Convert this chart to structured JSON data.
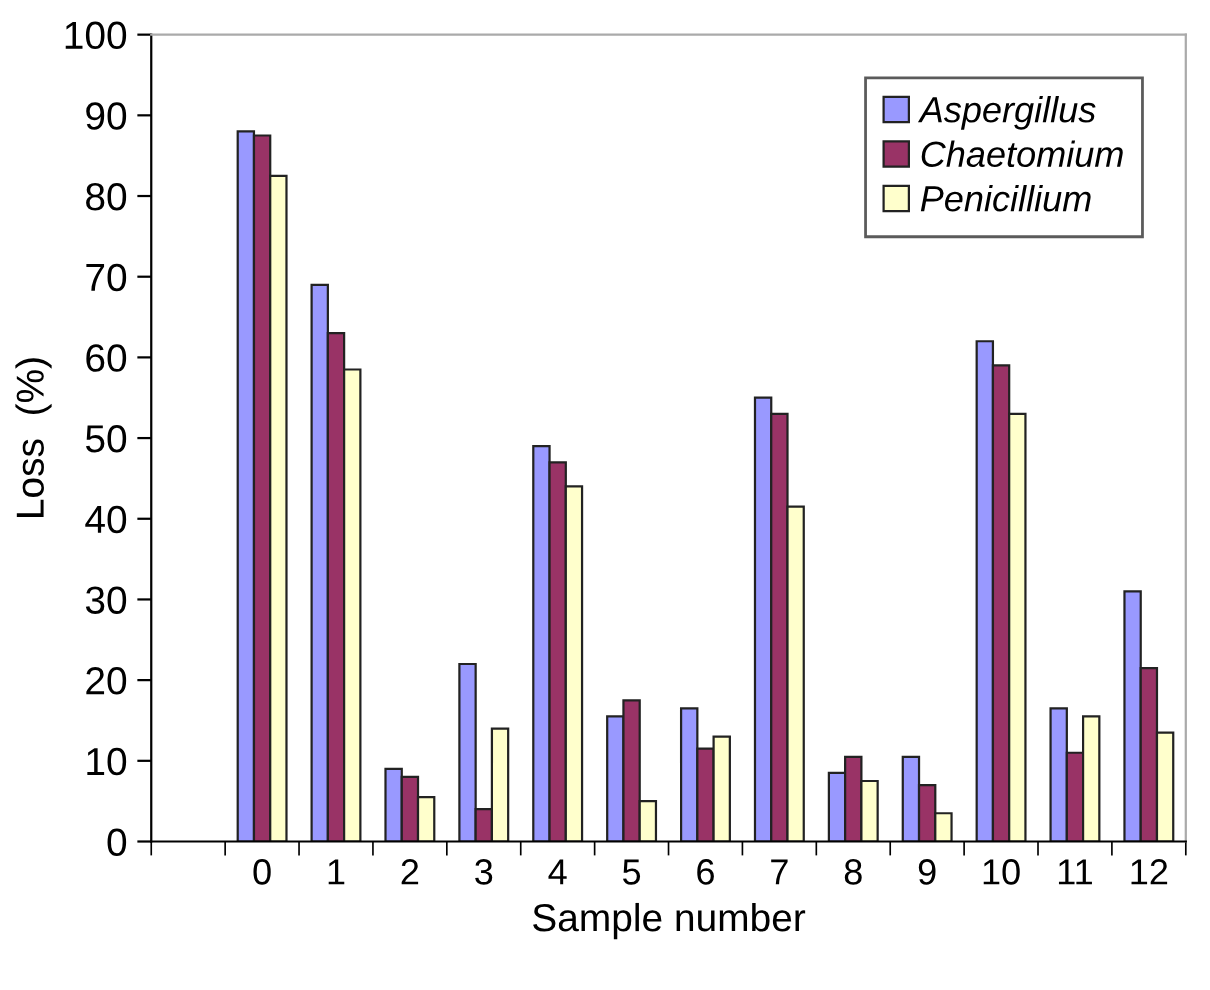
{
  "chart_data": {
    "type": "bar",
    "xlabel": "Sample number",
    "ylabel": "Loss  (%)",
    "categories": [
      null,
      "0",
      "1",
      "2",
      "3",
      "4",
      "5",
      "6",
      "7",
      "8",
      "9",
      "10",
      "11",
      "12"
    ],
    "series": [
      {
        "name": "Aspergillus",
        "color": "#9999ff",
        "values": [
          null,
          88,
          69,
          9,
          22,
          49,
          15.5,
          16.5,
          55,
          8.5,
          10.5,
          62,
          16.5,
          31
        ]
      },
      {
        "name": "Chaetomium",
        "color": "#993366",
        "values": [
          null,
          87.5,
          63,
          8,
          4,
          47,
          17.5,
          11.5,
          53,
          10.5,
          7,
          59,
          11,
          21.5
        ]
      },
      {
        "name": "Penicillium",
        "color": "#ffffcc",
        "values": [
          null,
          82.5,
          58.5,
          5.5,
          14,
          44,
          5,
          13,
          41.5,
          7.5,
          3.5,
          53,
          15.5,
          13.5
        ]
      }
    ],
    "ylim": [
      0,
      100
    ],
    "yticks": [
      0,
      10,
      20,
      30,
      40,
      50,
      60,
      70,
      80,
      90,
      100
    ],
    "grid": false,
    "legend": "top right"
  }
}
